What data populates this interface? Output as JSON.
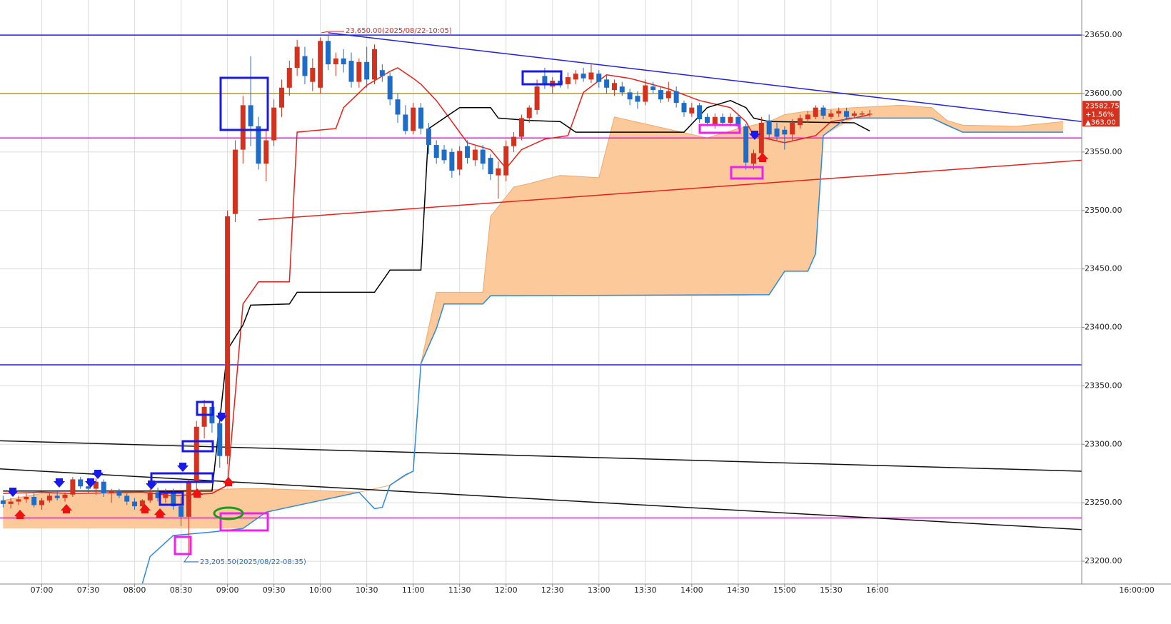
{
  "chart_data": {
    "type": "candlestick",
    "xlim": [
      "06:33",
      "18:12"
    ],
    "ylim": [
      23180.5,
      23680
    ],
    "yticks": [
      {
        "value": 23200,
        "label": "23200.00"
      },
      {
        "value": 23250,
        "label": "23250.00"
      },
      {
        "value": 23300,
        "label": "23300.00"
      },
      {
        "value": 23350,
        "label": "23350.00"
      },
      {
        "value": 23400,
        "label": "23400.00"
      },
      {
        "value": 23450,
        "label": "23450.00"
      },
      {
        "value": 23500,
        "label": "23500.00"
      },
      {
        "value": 23550,
        "label": "23550.00"
      },
      {
        "value": 23600,
        "label": "23600.00"
      },
      {
        "value": 23650,
        "label": "23650.00"
      }
    ],
    "xticks": [
      "07:00",
      "07:30",
      "08:00",
      "08:30",
      "09:00",
      "09:30",
      "10:00",
      "10:30",
      "11:00",
      "11:30",
      "12:00",
      "12:30",
      "13:00",
      "13:30",
      "14:00",
      "14:30",
      "15:00",
      "15:30",
      "16:00"
    ],
    "x_cursor_label": "16:00:00",
    "grid": true,
    "up_color": "#d2321e",
    "down_color": "#1f6cc8",
    "candles": {
      "x": [
        "06:35",
        "06:40",
        "06:45",
        "06:50",
        "06:55",
        "07:00",
        "07:05",
        "07:10",
        "07:15",
        "07:20",
        "07:25",
        "07:30",
        "07:35",
        "07:40",
        "07:45",
        "07:50",
        "07:55",
        "08:00",
        "08:05",
        "08:10",
        "08:15",
        "08:20",
        "08:25",
        "08:30",
        "08:35",
        "08:40",
        "08:45",
        "08:50",
        "08:55",
        "09:00",
        "09:05",
        "09:10",
        "09:15",
        "09:20",
        "09:25",
        "09:30",
        "09:35",
        "09:40",
        "09:45",
        "09:50",
        "09:55",
        "10:00",
        "10:05",
        "10:10",
        "10:15",
        "10:20",
        "10:25",
        "10:30",
        "10:35",
        "10:40",
        "10:45",
        "10:50",
        "10:55",
        "11:00",
        "11:05",
        "11:10",
        "11:15",
        "11:20",
        "11:25",
        "11:30",
        "11:35",
        "11:40",
        "11:45",
        "11:50",
        "11:55",
        "12:00",
        "12:05",
        "12:10",
        "12:15",
        "12:20",
        "12:25",
        "12:30",
        "12:35",
        "12:40",
        "12:45",
        "12:50",
        "12:55",
        "13:00",
        "13:05",
        "13:10",
        "13:15",
        "13:20",
        "13:25",
        "13:30",
        "13:35",
        "13:40",
        "13:45",
        "13:50",
        "13:55",
        "14:00",
        "14:05",
        "14:10",
        "14:15",
        "14:20",
        "14:25",
        "14:30",
        "14:35",
        "14:40",
        "14:45",
        "14:50",
        "14:55",
        "15:00",
        "15:05",
        "15:10",
        "15:15",
        "15:20",
        "15:25",
        "15:30",
        "15:35",
        "15:40",
        "15:45",
        "15:50",
        "15:55"
      ],
      "open": [
        23252,
        23249,
        23251,
        23253,
        23255,
        23248,
        23252,
        23256,
        23254,
        23257,
        23270,
        23264,
        23262,
        23268,
        23258,
        23260,
        23256,
        23251,
        23247,
        23252,
        23259,
        23254,
        23258,
        23247,
        23238,
        23268,
        23315,
        23332,
        23318,
        23290,
        23497,
        23552,
        23590,
        23572,
        23540,
        23560,
        23588,
        23605,
        23622,
        23632,
        23610,
        23605,
        23645,
        23625,
        23630,
        23628,
        23610,
        23627,
        23612,
        23620,
        23615,
        23595,
        23582,
        23568,
        23588,
        23570,
        23556,
        23552,
        23550,
        23535,
        23555,
        23543,
        23552,
        23545,
        23530,
        23530,
        23555,
        23563,
        23579,
        23586,
        23615,
        23606,
        23611,
        23608,
        23612,
        23617,
        23612,
        23617,
        23612,
        23603,
        23606,
        23601,
        23598,
        23593,
        23606,
        23603,
        23596,
        23602,
        23592,
        23583,
        23590,
        23580,
        23574,
        23580,
        23575,
        23580,
        23572,
        23540,
        23549,
        23577,
        23570,
        23569,
        23565,
        23573,
        23578,
        23580,
        23588,
        23580,
        23583,
        23585,
        23581,
        23582,
        23582
      ],
      "high": [
        23256,
        23254,
        23256,
        23258,
        23258,
        23254,
        23258,
        23260,
        23259,
        23272,
        23272,
        23268,
        23271,
        23270,
        23262,
        23262,
        23258,
        23254,
        23253,
        23262,
        23263,
        23262,
        23262,
        23255,
        23270,
        23320,
        23338,
        23334,
        23328,
        23500,
        23560,
        23598,
        23632,
        23580,
        23570,
        23595,
        23612,
        23628,
        23646,
        23640,
        23630,
        23648,
        23650,
        23635,
        23638,
        23635,
        23630,
        23640,
        23642,
        23625,
        23618,
        23600,
        23590,
        23592,
        23592,
        23575,
        23560,
        23556,
        23553,
        23555,
        23560,
        23555,
        23556,
        23548,
        23542,
        23560,
        23567,
        23582,
        23590,
        23612,
        23622,
        23614,
        23616,
        23618,
        23620,
        23622,
        23625,
        23620,
        23616,
        23612,
        23610,
        23604,
        23602,
        23612,
        23610,
        23606,
        23610,
        23606,
        23594,
        23592,
        23592,
        23583,
        23583,
        23583,
        23583,
        23582,
        23574,
        23552,
        23580,
        23582,
        23575,
        23572,
        23578,
        23582,
        23585,
        23590,
        23590,
        23586,
        23588,
        23588,
        23585,
        23585,
        23586
      ],
      "low": [
        23246,
        23245,
        23248,
        23250,
        23246,
        23244,
        23250,
        23252,
        23251,
        23255,
        23262,
        23258,
        23257,
        23255,
        23250,
        23254,
        23248,
        23244,
        23243,
        23250,
        23251,
        23250,
        23244,
        23230,
        23205.5,
        23262,
        23305,
        23310,
        23280,
        23283,
        23490,
        23540,
        23555,
        23535,
        23525,
        23555,
        23580,
        23598,
        23615,
        23608,
        23602,
        23600,
        23620,
        23615,
        23618,
        23605,
        23605,
        23605,
        23608,
        23610,
        23590,
        23575,
        23565,
        23565,
        23565,
        23548,
        23540,
        23540,
        23528,
        23530,
        23540,
        23538,
        23535,
        23526,
        23510,
        23525,
        23550,
        23560,
        23575,
        23582,
        23604,
        23600,
        23605,
        23604,
        23608,
        23610,
        23609,
        23605,
        23600,
        23598,
        23598,
        23590,
        23587,
        23590,
        23600,
        23592,
        23593,
        23588,
        23580,
        23580,
        23575,
        23572,
        23570,
        23572,
        23572,
        23570,
        23535,
        23535,
        23545,
        23562,
        23560,
        23552,
        23560,
        23570,
        23575,
        23578,
        23578,
        23578,
        23580,
        23578,
        23579,
        23580,
        23580
      ],
      "close": [
        23249,
        23251,
        23253,
        23255,
        23248,
        23252,
        23256,
        23254,
        23257,
        23270,
        23264,
        23262,
        23268,
        23258,
        23260,
        23256,
        23251,
        23247,
        23252,
        23259,
        23254,
        23258,
        23247,
        23238,
        23268,
        23315,
        23332,
        23318,
        23290,
        23495,
        23552,
        23590,
        23572,
        23540,
        23560,
        23588,
        23605,
        23622,
        23640,
        23615,
        23622,
        23645,
        23625,
        23630,
        23625,
        23610,
        23627,
        23612,
        23638,
        23615,
        23595,
        23582,
        23568,
        23588,
        23570,
        23556,
        23545,
        23543,
        23534,
        23551,
        23545,
        23552,
        23540,
        23531,
        23536,
        23555,
        23563,
        23579,
        23588,
        23606,
        23607,
        23611,
        23608,
        23614,
        23617,
        23613,
        23618,
        23610,
        23605,
        23609,
        23601,
        23595,
        23593,
        23607,
        23603,
        23595,
        23602,
        23592,
        23584,
        23588,
        23578,
        23575,
        23580,
        23575,
        23580,
        23572,
        23541,
        23549,
        23575,
        23565,
        23563,
        23565,
        23575,
        23579,
        23582,
        23588,
        23581,
        23583,
        23585,
        23580,
        23583,
        23583,
        23582.75
      ]
    },
    "cloud": {
      "color": "#fcc99a",
      "edge_color": "#f2a868",
      "x": [
        "06:35",
        "07:00",
        "07:30",
        "08:05",
        "09:10",
        "09:25",
        "10:25",
        "10:45",
        "11:00",
        "11:05",
        "11:15",
        "11:20",
        "11:45",
        "11:50",
        "12:05",
        "12:15",
        "12:35",
        "13:00",
        "13:10",
        "13:50",
        "14:10",
        "14:30",
        "14:50",
        "15:00",
        "15:15",
        "15:20",
        "15:25",
        "15:45",
        "16:15",
        "16:35",
        "16:45",
        "16:55",
        "17:30",
        "18:00"
      ],
      "upper": [
        23252,
        23258,
        23258,
        23260,
        23262,
        23262,
        23259,
        23265,
        23277,
        23369,
        23430,
        23430,
        23430,
        23495,
        23520,
        23523,
        23530,
        23528,
        23580,
        23568,
        23562,
        23570,
        23576,
        23582,
        23585,
        23585,
        23586,
        23588,
        23590,
        23588,
        23577,
        23573,
        23572,
        23576
      ],
      "lower": [
        23228,
        23228,
        23228,
        23228,
        23228,
        23242,
        23259,
        23265,
        23277,
        23369,
        23399,
        23420,
        23420,
        23427,
        23427,
        23427,
        23427,
        23427,
        23427,
        23427,
        23427,
        23427,
        23428,
        23448,
        23448,
        23463,
        23564,
        23579,
        23579,
        23579,
        23572,
        23567,
        23567,
        23567
      ]
    },
    "lines": [
      {
        "color": "#e8201a",
        "x": [
          "06:35",
          "07:00",
          "07:20",
          "08:05",
          "08:25",
          "08:50",
          "09:00",
          "09:10",
          "09:20",
          "09:40",
          "09:45",
          "10:10",
          "10:15",
          "10:30",
          "10:45",
          "10:50",
          "11:00",
          "11:05",
          "11:15",
          "11:25",
          "11:35",
          "11:50",
          "12:00",
          "12:10",
          "12:25",
          "12:40",
          "12:50",
          "13:05",
          "13:20",
          "13:45",
          "14:05",
          "14:25",
          "14:35",
          "14:40",
          "14:50",
          "15:00",
          "15:20",
          "15:30",
          "15:45",
          "15:55"
        ],
        "values": [
          23258,
          23259,
          23258,
          23259,
          23256,
          23258,
          23265,
          23420,
          23439,
          23439,
          23567,
          23570,
          23588,
          23607,
          23619,
          23622,
          23613,
          23608,
          23594,
          23576,
          23558,
          23552,
          23536,
          23552,
          23561,
          23564,
          23601,
          23616,
          23613,
          23604,
          23594,
          23588,
          23576,
          23564,
          23561,
          23558,
          23564,
          23576,
          23579,
          23582
        ]
      },
      {
        "color": "#000000",
        "x": [
          "06:35",
          "08:50",
          "09:00",
          "09:10",
          "09:15",
          "09:40",
          "09:45",
          "10:35",
          "10:45",
          "11:05",
          "11:10",
          "11:30",
          "11:50",
          "11:55",
          "12:15",
          "12:35",
          "12:45",
          "13:55",
          "14:10",
          "14:25",
          "14:35",
          "14:40",
          "14:50",
          "15:45",
          "15:55"
        ],
        "values": [
          23260,
          23260,
          23381,
          23402,
          23419,
          23420,
          23430,
          23430,
          23449,
          23449,
          23570,
          23588,
          23588,
          23579,
          23577,
          23576,
          23567,
          23567,
          23588,
          23594,
          23588,
          23579,
          23576,
          23575,
          23568
        ]
      },
      {
        "color": "#2a8ae0",
        "x": [
          "08:05",
          "08:10",
          "08:25",
          "08:50",
          "09:10",
          "09:25",
          "10:25",
          "10:35",
          "10:40",
          "10:45",
          "10:55",
          "11:00",
          "11:05",
          "11:15",
          "11:20",
          "11:45",
          "11:50",
          "14:50",
          "15:00",
          "15:15",
          "15:20",
          "15:25",
          "15:40",
          "16:35",
          "16:55",
          "18:00"
        ],
        "values": [
          23181,
          23204,
          23222,
          23225,
          23228,
          23242,
          23259,
          23245,
          23246,
          23265,
          23274,
          23277,
          23369,
          23399,
          23420,
          23420,
          23427,
          23428,
          23448,
          23448,
          23463,
          23564,
          23579,
          23579,
          23567,
          23567
        ]
      }
    ],
    "hlines": [
      {
        "value": 23650,
        "color": "#2020e0"
      },
      {
        "value": 23600,
        "color": "#b39a2c"
      },
      {
        "value": 23562,
        "color": "#ff00ff"
      },
      {
        "value": 23368,
        "color": "#2020e0"
      },
      {
        "value": 23237,
        "color": "#ff00ff"
      }
    ],
    "trendlines": [
      {
        "color": "#2020e0",
        "x": [
          "10:05",
          "18:12"
        ],
        "values": [
          23652,
          23576
        ]
      },
      {
        "color": "#e8201a",
        "x": [
          "09:20",
          "18:12"
        ],
        "values": [
          23492,
          23543
        ]
      },
      {
        "color": "#111111",
        "x": [
          "06:33",
          "18:12"
        ],
        "values": [
          23303,
          23277
        ]
      },
      {
        "color": "#111111",
        "x": [
          "06:33",
          "18:12"
        ],
        "values": [
          23279,
          23227
        ]
      }
    ],
    "last_price": {
      "value": 23582.75,
      "label": "23582.75"
    },
    "last_change": [
      "+1.56%",
      "▲363.00"
    ],
    "annotations": [
      "23,650.00(2025/08/22-10:05)",
      "23,205.50(2025/08/22-08:35)"
    ]
  }
}
